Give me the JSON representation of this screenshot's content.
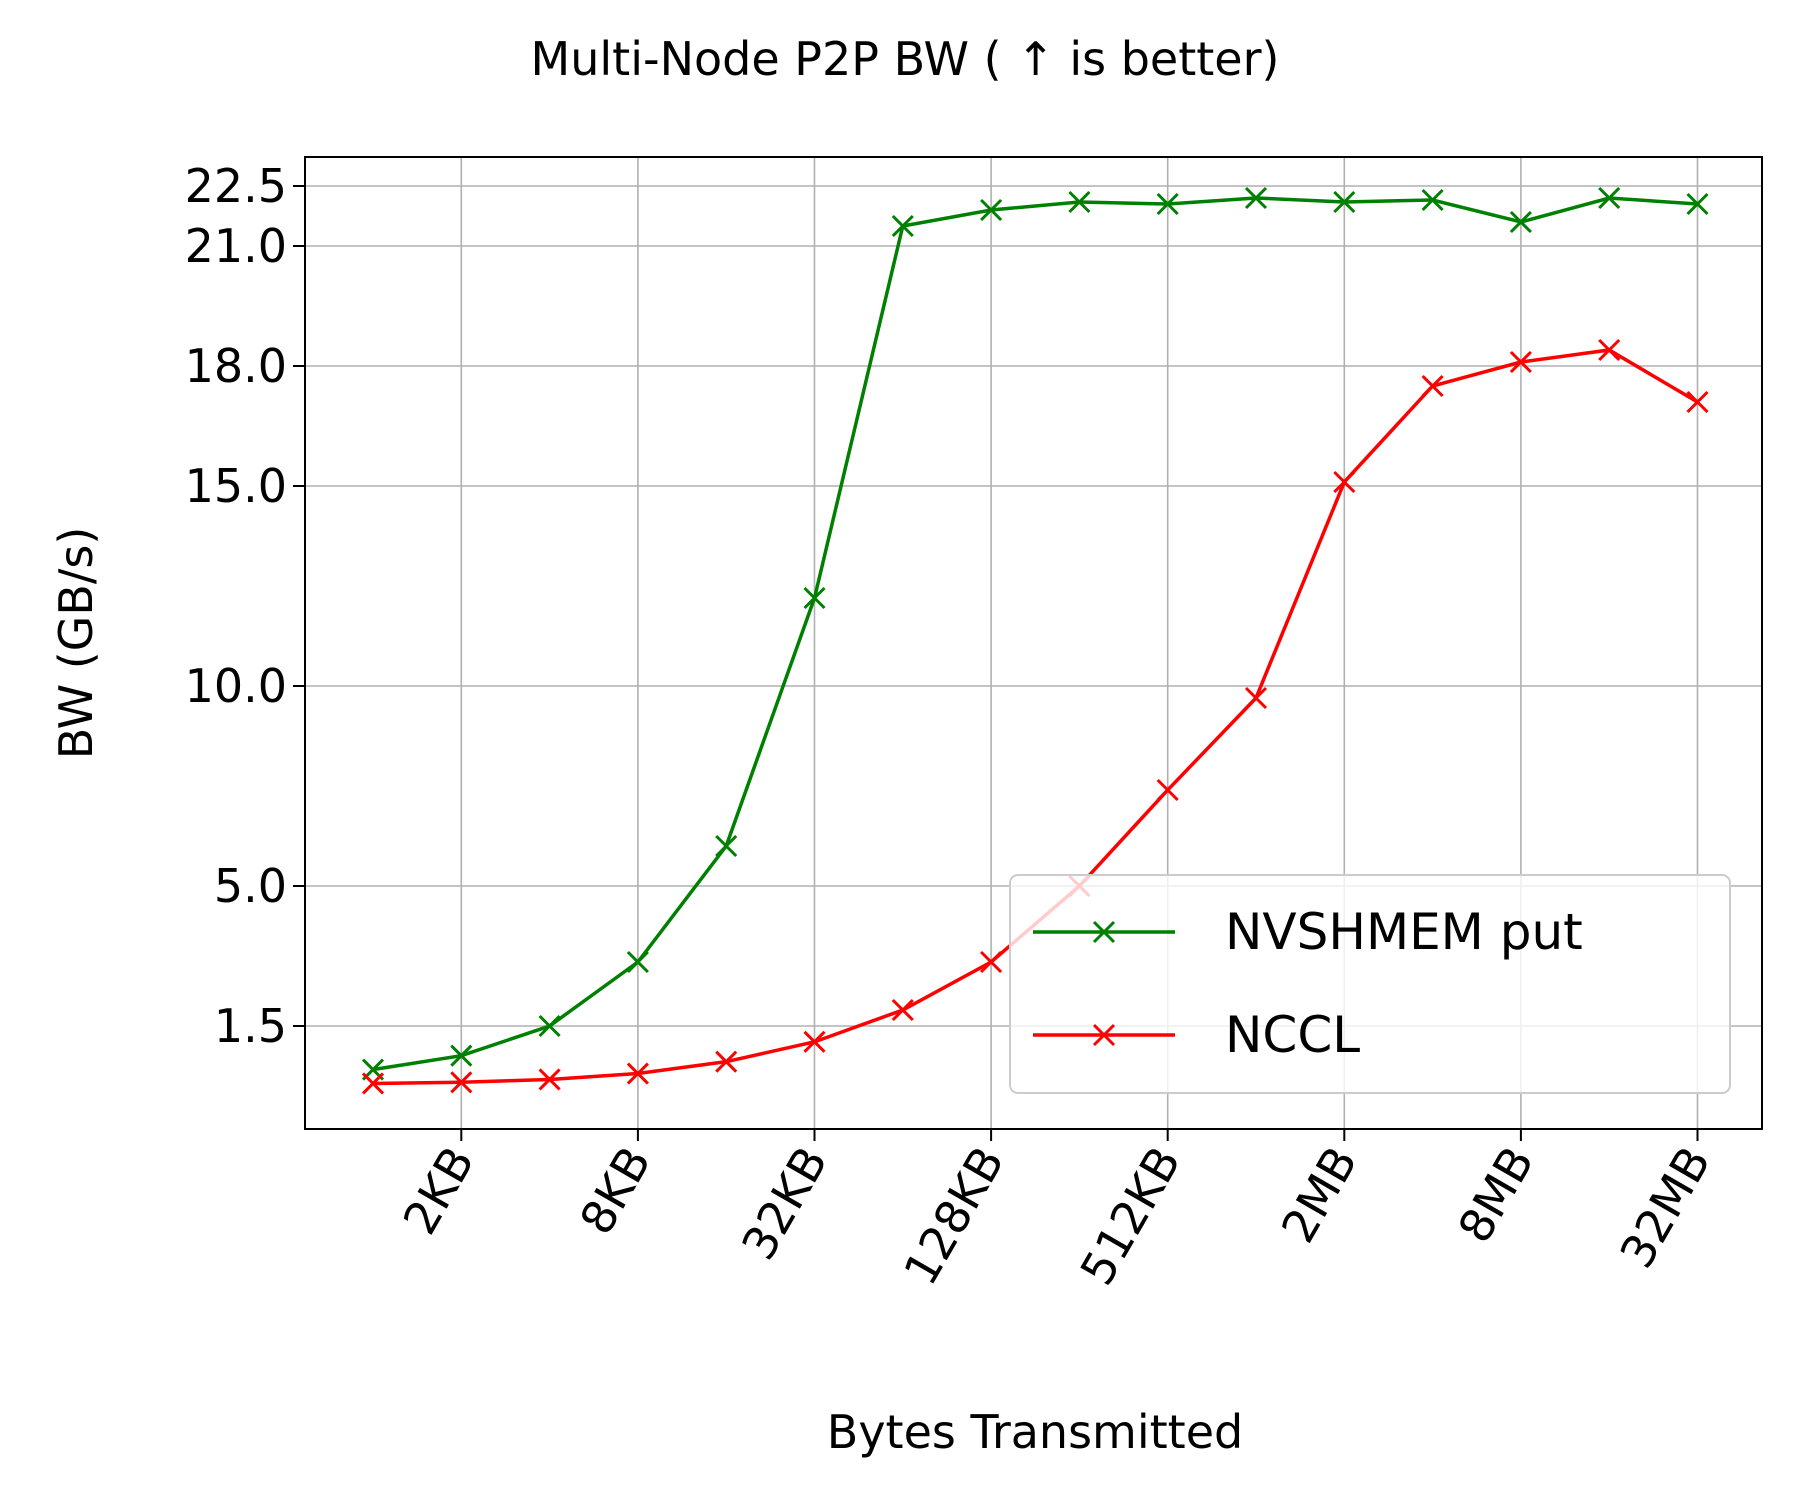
{
  "chart_data": {
    "type": "line",
    "title": "Multi-Node P2P BW ( ↑  is better)",
    "xlabel": "Bytes Transmitted",
    "ylabel": "BW (GB/s)",
    "x": [
      "1KB",
      "2KB",
      "4KB",
      "8KB",
      "16KB",
      "32KB",
      "64KB",
      "128KB",
      "256KB",
      "512KB",
      "1MB",
      "2MB",
      "4MB",
      "8MB",
      "16MB",
      "32MB"
    ],
    "x_tick_labels": [
      "2KB",
      "8KB",
      "32KB",
      "128KB",
      "512KB",
      "2MB",
      "8MB",
      "32MB"
    ],
    "y_tick_labels": [
      "1.5",
      "5.0",
      "10.0",
      "15.0",
      "18.0",
      "21.0",
      "22.5"
    ],
    "y_scale": "nonlinear, ticks at 1.5, 5.0, 10.0, 15.0, 18.0, 21.0, 22.5",
    "ylim": [
      -1.1,
      23.2
    ],
    "grid": true,
    "legend_position": "lower right",
    "series": [
      {
        "name": "NVSHMEM put",
        "color": "#008000",
        "marker": "x",
        "values": [
          0.4,
          0.75,
          1.5,
          3.1,
          6.0,
          12.2,
          21.5,
          21.9,
          22.1,
          22.05,
          22.2,
          22.1,
          22.15,
          21.6,
          22.2,
          22.05
        ]
      },
      {
        "name": "NCCL",
        "color": "#ff0000",
        "marker": "x",
        "values": [
          0.05,
          0.08,
          0.15,
          0.3,
          0.6,
          1.1,
          1.9,
          3.1,
          5.0,
          7.4,
          9.7,
          15.1,
          17.5,
          18.1,
          18.4,
          17.1
        ]
      }
    ]
  }
}
